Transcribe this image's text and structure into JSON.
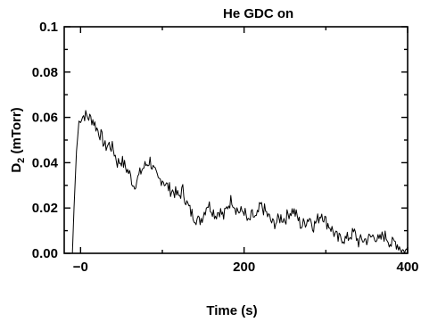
{
  "chart_data": {
    "type": "line",
    "title": "He GDC  on",
    "xlabel": "Time (s)",
    "ylabel": {
      "main": "D",
      "sub": "2",
      "unit": " (mTorr)"
    },
    "xlim": [
      -20,
      400
    ],
    "ylim": [
      0,
      0.1
    ],
    "xticks": [
      0,
      200,
      400
    ],
    "xtick_labels": [
      "−0",
      "200",
      "400"
    ],
    "yticks": [
      0.0,
      0.02,
      0.04,
      0.06,
      0.08,
      0.1
    ],
    "ytick_labels": [
      "0.00",
      "0.02",
      "0.04",
      "0.06",
      "0.08",
      "0.1"
    ],
    "grid": false,
    "line_color": "#000000",
    "series": [
      {
        "x": [
          -20,
          -10,
          -8,
          -5,
          -2,
          0,
          5,
          10,
          15,
          20,
          25,
          30,
          35,
          40,
          45,
          50,
          55,
          60,
          65,
          70,
          75,
          80,
          85,
          90,
          95,
          100,
          105,
          110,
          115,
          120,
          125,
          130,
          135,
          140,
          145,
          150,
          155,
          160,
          165,
          170,
          175,
          180,
          185,
          190,
          195,
          200,
          205,
          210,
          215,
          220,
          225,
          230,
          235,
          240,
          245,
          250,
          255,
          260,
          265,
          270,
          275,
          280,
          285,
          290,
          295,
          300,
          305,
          310,
          315,
          320,
          325,
          330,
          335,
          340,
          345,
          350,
          355,
          360,
          365,
          370,
          375,
          380,
          385,
          390,
          395,
          400
        ],
        "y": [
          0.0,
          0.0,
          0.02,
          0.045,
          0.058,
          0.06,
          0.061,
          0.06,
          0.059,
          0.055,
          0.052,
          0.047,
          0.048,
          0.046,
          0.04,
          0.041,
          0.038,
          0.035,
          0.03,
          0.033,
          0.037,
          0.039,
          0.041,
          0.036,
          0.032,
          0.033,
          0.03,
          0.028,
          0.027,
          0.025,
          0.028,
          0.022,
          0.018,
          0.016,
          0.014,
          0.017,
          0.022,
          0.02,
          0.017,
          0.019,
          0.016,
          0.021,
          0.024,
          0.02,
          0.018,
          0.019,
          0.013,
          0.017,
          0.015,
          0.021,
          0.019,
          0.016,
          0.013,
          0.014,
          0.016,
          0.015,
          0.018,
          0.019,
          0.016,
          0.012,
          0.014,
          0.016,
          0.012,
          0.015,
          0.018,
          0.014,
          0.012,
          0.009,
          0.006,
          0.007,
          0.006,
          0.008,
          0.009,
          0.005,
          0.006,
          0.006,
          0.007,
          0.008,
          0.005,
          0.008,
          0.007,
          0.004,
          0.005,
          0.003,
          0.001,
          0.001
        ],
        "noise": 0.003
      }
    ]
  }
}
